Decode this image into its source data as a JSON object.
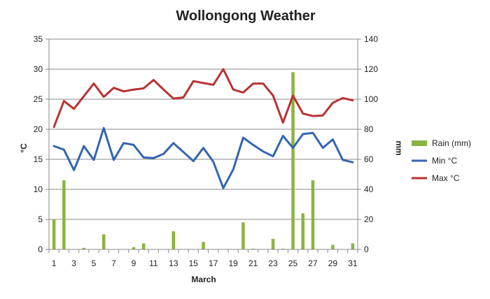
{
  "chart_data": {
    "type": "bar+line",
    "title": "Wollongong Weather",
    "xlabel": "March",
    "ylabel_left": "°C",
    "ylabel_right": "mm",
    "x": [
      1,
      2,
      3,
      4,
      5,
      6,
      7,
      8,
      9,
      10,
      11,
      12,
      13,
      14,
      15,
      16,
      17,
      18,
      19,
      20,
      21,
      22,
      23,
      24,
      25,
      26,
      27,
      28,
      29,
      30,
      31
    ],
    "xticks": [
      "1",
      "3",
      "5",
      "7",
      "9",
      "11",
      "13",
      "15",
      "17",
      "19",
      "21",
      "23",
      "25",
      "27",
      "29",
      "31"
    ],
    "y_left_lim": [
      0,
      35
    ],
    "y_left_ticks": [
      "0",
      "5",
      "10",
      "15",
      "20",
      "25",
      "30",
      "35"
    ],
    "y_right_lim": [
      0,
      140
    ],
    "y_right_ticks": [
      "0",
      "20",
      "40",
      "60",
      "80",
      "100",
      "120",
      "140"
    ],
    "legend_position": "right",
    "series": [
      {
        "name": "Rain (mm)",
        "kind": "bar",
        "axis": "right",
        "color": "#8ab53f",
        "values": [
          20,
          46,
          0,
          1,
          0,
          10,
          0,
          0,
          1.5,
          4,
          0,
          0,
          12,
          0,
          0,
          5,
          0,
          0,
          0,
          18,
          0.5,
          0,
          7,
          0.5,
          118,
          24,
          46,
          0,
          3,
          0,
          4
        ]
      },
      {
        "name": "Min °C",
        "kind": "line",
        "axis": "left",
        "color": "#3465b0",
        "values": [
          17.2,
          16.6,
          13.2,
          17.2,
          14.9,
          20.2,
          14.9,
          17.7,
          17.4,
          15.3,
          15.2,
          15.9,
          17.7,
          16.2,
          14.7,
          16.9,
          14.6,
          10.2,
          13.3,
          18.6,
          17.4,
          16.3,
          15.5,
          18.9,
          16.9,
          19.2,
          19.4,
          16.9,
          18.3,
          14.9,
          14.5
        ]
      },
      {
        "name": "Max °C",
        "kind": "line",
        "axis": "left",
        "color": "#b83232",
        "values": [
          20.4,
          24.7,
          23.4,
          25.5,
          27.6,
          25.4,
          26.9,
          26.3,
          26.6,
          26.8,
          28.2,
          26.6,
          25.1,
          25.3,
          28.0,
          27.7,
          27.4,
          30.0,
          26.6,
          26.1,
          27.6,
          27.6,
          25.6,
          21.1,
          25.6,
          22.6,
          22.2,
          22.3,
          24.4,
          25.2,
          24.8
        ]
      }
    ]
  }
}
